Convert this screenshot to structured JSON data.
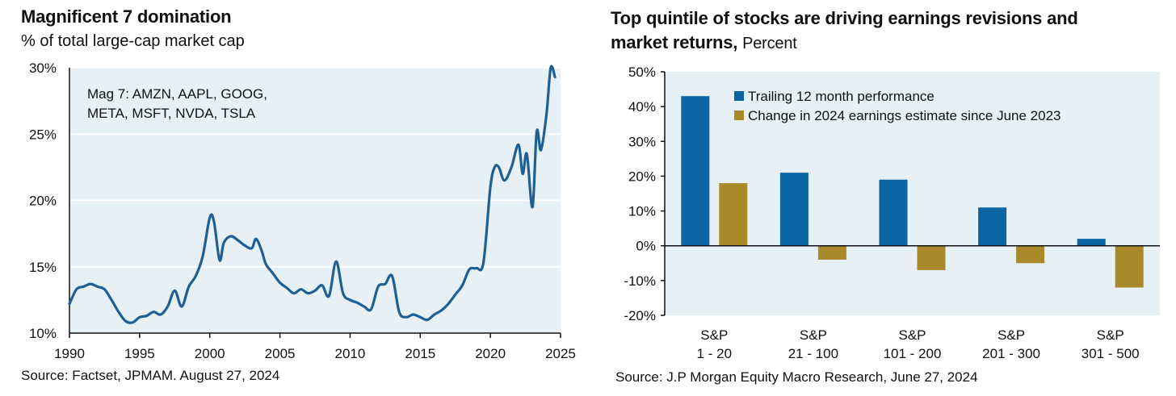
{
  "colors": {
    "plot_bg": "#e6f0f5",
    "gridline": "#ffffff",
    "line": "#1f5f93",
    "bar_primary": "#0b65a3",
    "bar_secondary": "#a98a2a",
    "axis": "#111111"
  },
  "charts": [
    {
      "title": "Magnificent 7 domination",
      "subtitle": "% of total large-cap market cap",
      "source": "Source: Factset, JPMAM. August 27, 2024",
      "annotation": [
        "Mag 7: AMZN, AAPL, GOOG,",
        "META, MSFT, NVDA, TSLA"
      ]
    },
    {
      "title": "Top quintile of stocks are driving earnings revisions and",
      "title_line2": "market returns,",
      "title_unit": "Percent",
      "source": "Source: J.P Morgan Equity Macro Research, June 27, 2024"
    }
  ],
  "chart_data": [
    {
      "type": "line",
      "title": "Magnificent 7 domination",
      "subtitle": "% of total large-cap market cap",
      "xlim": [
        1990,
        2025
      ],
      "ylim": [
        10,
        30
      ],
      "x_ticks": [
        1990,
        1995,
        2000,
        2005,
        2010,
        2015,
        2020,
        2025
      ],
      "y_ticks": [
        10,
        15,
        20,
        25,
        30
      ],
      "x_tick_labels": [
        "1990",
        "1995",
        "2000",
        "2005",
        "2010",
        "2015",
        "2020",
        "2025"
      ],
      "y_tick_labels": [
        "10%",
        "15%",
        "20%",
        "25%",
        "30%"
      ],
      "grid": "horizontal",
      "series": [
        {
          "x": [
            1990.0,
            1990.5,
            1991.0,
            1991.5,
            1992.0,
            1992.5,
            1993.0,
            1993.5,
            1994.0,
            1994.5,
            1995.0,
            1995.5,
            1996.0,
            1996.5,
            1997.0,
            1997.5,
            1998.0,
            1998.5,
            1999.0,
            1999.5,
            2000.0,
            2000.3,
            2000.7,
            2001.0,
            2001.5,
            2002.0,
            2002.5,
            2003.0,
            2003.3,
            2003.7,
            2004.0,
            2004.5,
            2005.0,
            2005.5,
            2006.0,
            2006.5,
            2007.0,
            2007.5,
            2008.0,
            2008.5,
            2009.0,
            2009.5,
            2010.0,
            2010.5,
            2011.0,
            2011.5,
            2012.0,
            2012.5,
            2013.0,
            2013.5,
            2014.0,
            2014.5,
            2015.0,
            2015.5,
            2016.0,
            2016.5,
            2017.0,
            2017.5,
            2018.0,
            2018.5,
            2019.0,
            2019.5,
            2020.0,
            2020.3,
            2020.6,
            2021.0,
            2021.5,
            2022.0,
            2022.3,
            2022.6,
            2023.0,
            2023.3,
            2023.6,
            2024.0,
            2024.3,
            2024.6
          ],
          "y": [
            12.2,
            13.3,
            13.5,
            13.7,
            13.5,
            13.3,
            12.5,
            11.6,
            10.9,
            10.8,
            11.2,
            11.3,
            11.6,
            11.4,
            12.0,
            13.2,
            12.0,
            13.5,
            14.3,
            15.8,
            18.7,
            18.4,
            15.5,
            16.8,
            17.3,
            17.0,
            16.6,
            16.4,
            17.1,
            16.2,
            15.2,
            14.5,
            13.8,
            13.4,
            13.0,
            13.3,
            13.0,
            13.2,
            13.6,
            12.8,
            15.4,
            13.0,
            12.5,
            12.3,
            12.0,
            11.8,
            13.5,
            13.7,
            14.3,
            11.6,
            11.2,
            11.4,
            11.2,
            11.0,
            11.4,
            11.7,
            12.2,
            12.9,
            13.6,
            14.8,
            14.9,
            15.3,
            21.0,
            22.5,
            22.5,
            21.5,
            22.5,
            24.2,
            22.0,
            23.5,
            19.5,
            25.2,
            23.8,
            26.5,
            30.0,
            29.3
          ]
        }
      ],
      "annotation": "Mag 7: AMZN, AAPL, GOOG, META, MSFT, NVDA, TSLA",
      "source": "Source: Factset, JPMAM. August 27, 2024"
    },
    {
      "type": "bar",
      "title": "Top quintile of stocks are driving earnings revisions and market returns, Percent",
      "categories": [
        "S&P 1 - 20",
        "S&P 21 - 100",
        "S&P 101 - 200",
        "S&P 201 - 300",
        "S&P 301 - 500"
      ],
      "category_lines": [
        [
          "S&P",
          "1 - 20"
        ],
        [
          "S&P",
          "21 - 100"
        ],
        [
          "S&P",
          "101 - 200"
        ],
        [
          "S&P",
          "201 - 300"
        ],
        [
          "S&P",
          "301 - 500"
        ]
      ],
      "ylim": [
        -20,
        50
      ],
      "y_ticks": [
        -20,
        -10,
        0,
        10,
        20,
        30,
        40,
        50
      ],
      "y_tick_labels": [
        "-20%",
        "-10%",
        "0%",
        "10%",
        "20%",
        "30%",
        "40%",
        "50%"
      ],
      "grid": "none",
      "legend": "top-left",
      "series": [
        {
          "name": "Trailing 12 month performance",
          "values": [
            43,
            21,
            19,
            11,
            2
          ]
        },
        {
          "name": "Change in 2024 earnings estimate since June 2023",
          "values": [
            18,
            -4,
            -7,
            -5,
            -12
          ]
        }
      ],
      "source": "Source: J.P Morgan Equity Macro Research, June 27, 2024"
    }
  ]
}
